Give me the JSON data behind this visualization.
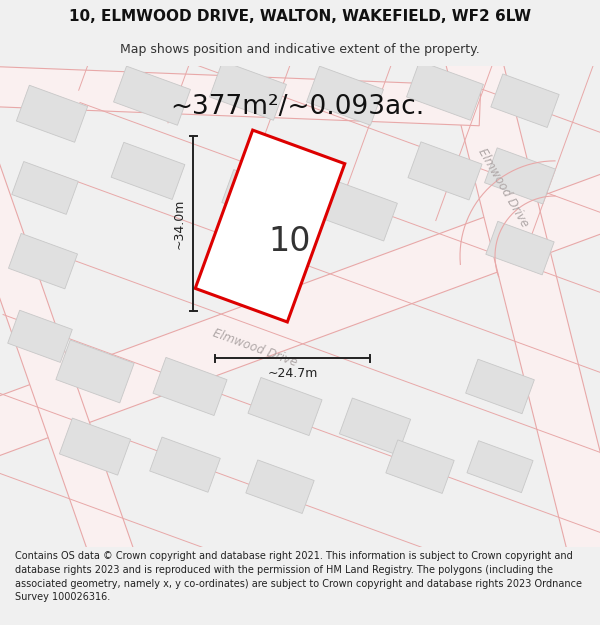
{
  "title_line1": "10, ELMWOOD DRIVE, WALTON, WAKEFIELD, WF2 6LW",
  "title_line2": "Map shows position and indicative extent of the property.",
  "area_label": "~377m²/~0.093ac.",
  "width_label": "~24.7m",
  "height_label": "~34.0m",
  "number_label": "10",
  "footer_text": "Contains OS data © Crown copyright and database right 2021. This information is subject to Crown copyright and database rights 2023 and is reproduced with the permission of HM Land Registry. The polygons (including the associated geometry, namely x, y co-ordinates) are subject to Crown copyright and database rights 2023 Ordnance Survey 100026316.",
  "bg_color": "#f0f0f0",
  "map_bg_color": "#ffffff",
  "plot_outline_color": "#dd0000",
  "road_line_color": "#e8a8a8",
  "road_fill_color": "#f7e8e8",
  "building_fill_color": "#e0e0e0",
  "building_edge_color": "#c8c8c8",
  "dim_line_color": "#222222",
  "road_label_color": "#b0a8a8",
  "title_fontsize": 11,
  "subtitle_fontsize": 9,
  "area_fontsize": 19,
  "number_fontsize": 24,
  "dim_fontsize": 9,
  "footer_fontsize": 7.0
}
